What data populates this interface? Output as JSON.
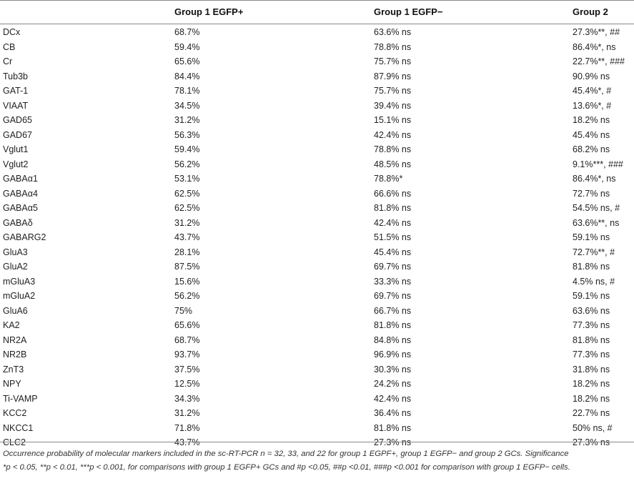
{
  "headers": [
    "",
    "Group 1 EGFP+",
    "Group 1 EGFP−",
    "Group 2"
  ],
  "rows": [
    [
      "DCx",
      "68.7%",
      "63.6% ns",
      "27.3%**, ##"
    ],
    [
      "CB",
      "59.4%",
      "78.8% ns",
      "86.4%*, ns"
    ],
    [
      "Cr",
      "65.6%",
      "75.7% ns",
      "22.7%**, ###"
    ],
    [
      "Tub3b",
      "84.4%",
      "87.9% ns",
      "90.9% ns"
    ],
    [
      "GAT-1",
      "78.1%",
      "75.7% ns",
      "45.4%*, #"
    ],
    [
      "VIAAT",
      "34.5%",
      "39.4% ns",
      "13.6%*, #"
    ],
    [
      "GAD65",
      "31.2%",
      "15.1% ns",
      "18.2% ns"
    ],
    [
      "GAD67",
      "56.3%",
      "42.4% ns",
      "45.4% ns"
    ],
    [
      "Vglut1",
      "59.4%",
      "78.8% ns",
      "68.2% ns"
    ],
    [
      "Vglut2",
      "56.2%",
      "48.5% ns",
      "9.1%***, ###"
    ],
    [
      "GABAα1",
      "53.1%",
      "78.8%*",
      "86.4%*, ns"
    ],
    [
      "GABAα4",
      "62.5%",
      "66.6% ns",
      "72.7% ns"
    ],
    [
      "GABAα5",
      "62.5%",
      "81.8% ns",
      "54.5% ns, #"
    ],
    [
      "GABAδ",
      "31.2%",
      "42.4% ns",
      "63.6%**, ns"
    ],
    [
      "GABARG2",
      "43.7%",
      "51.5% ns",
      "59.1% ns"
    ],
    [
      "GluA3",
      "28.1%",
      "45.4% ns",
      "72.7%**, #"
    ],
    [
      "GluA2",
      "87.5%",
      "69.7% ns",
      "81.8% ns"
    ],
    [
      "mGluA3",
      "15.6%",
      "33.3% ns",
      "4.5% ns, #"
    ],
    [
      "mGluA2",
      "56.2%",
      "69.7% ns",
      "59.1% ns"
    ],
    [
      "GluA6",
      "75%",
      "66.7% ns",
      "63.6% ns"
    ],
    [
      "KA2",
      "65.6%",
      "81.8% ns",
      "77.3% ns"
    ],
    [
      "NR2A",
      "68.7%",
      "84.8% ns",
      "81.8% ns"
    ],
    [
      "NR2B",
      "93.7%",
      "96.9% ns",
      "77.3% ns"
    ],
    [
      "ZnT3",
      "37.5%",
      "30.3% ns",
      "31.8% ns"
    ],
    [
      "NPY",
      "12.5%",
      "24.2% ns",
      "18.2% ns"
    ],
    [
      "Ti-VAMP",
      "34.3%",
      "42.4% ns",
      "18.2% ns"
    ],
    [
      "KCC2",
      "31.2%",
      "36.4% ns",
      "22.7% ns"
    ],
    [
      "NKCC1",
      "71.8%",
      "81.8% ns",
      "50% ns, #"
    ],
    [
      "CLC2",
      "43.7%",
      "27.3% ns",
      "27.3% ns"
    ]
  ],
  "caption": {
    "line1": "Occurrence probability of molecular markers included in the sc-RT-PCR n = 32, 33, and 22 for group 1 EGPF+, group 1 EGFP− and group 2 GCs. Significance",
    "line2": "*p < 0.05, **p < 0.01, ***p < 0.001, for comparisons with group 1 EGFP+ GCs and #p <0.05, ##p <0.01, ###p <0.001 for comparison with group 1 EGFP− cells."
  }
}
